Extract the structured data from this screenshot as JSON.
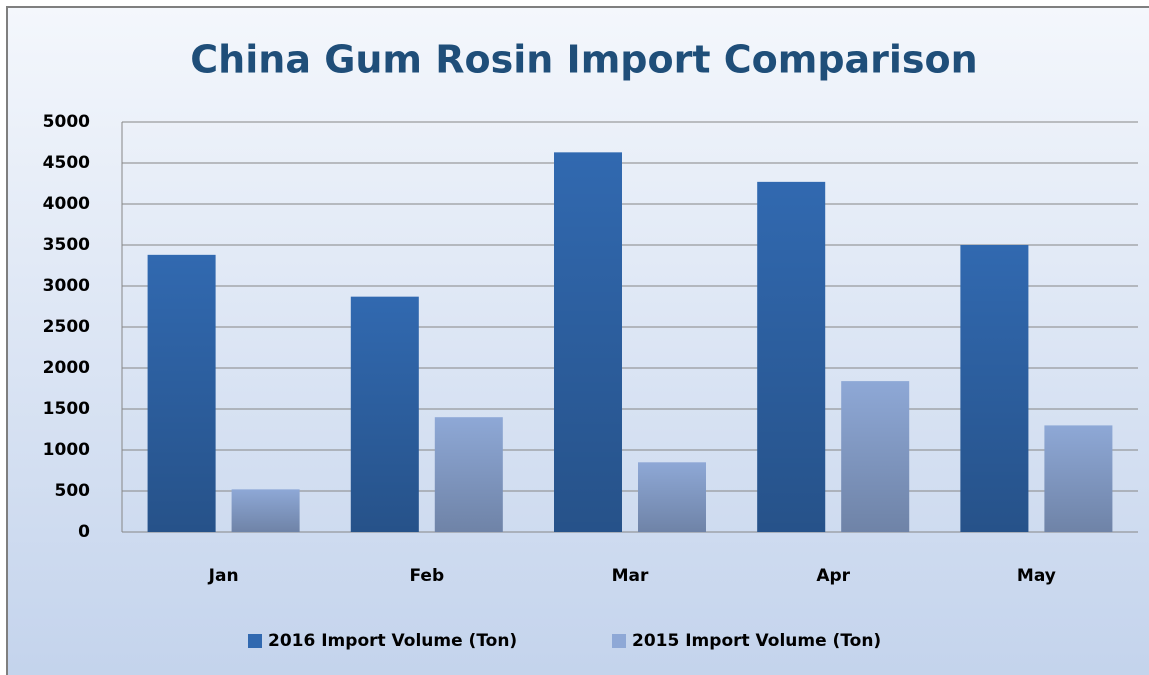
{
  "chart_data": {
    "type": "bar",
    "title": "China Gum Rosin Import Comparison",
    "categories": [
      "Jan",
      "Feb",
      "Mar",
      "Apr",
      "May"
    ],
    "series": [
      {
        "name": "2016 Import Volume (Ton)",
        "color": "#3169b0",
        "values": [
          3380,
          2870,
          4630,
          4270,
          3500
        ]
      },
      {
        "name": "2015 Import Volume (Ton)",
        "color": "#8ea8d6",
        "values": [
          520,
          1400,
          850,
          1840,
          1300
        ]
      }
    ],
    "ylim": [
      0,
      5000
    ],
    "yticks": [
      0,
      500,
      1000,
      1500,
      2000,
      2500,
      3000,
      3500,
      4000,
      4500,
      5000
    ],
    "grid": true,
    "legend": "bottom"
  }
}
